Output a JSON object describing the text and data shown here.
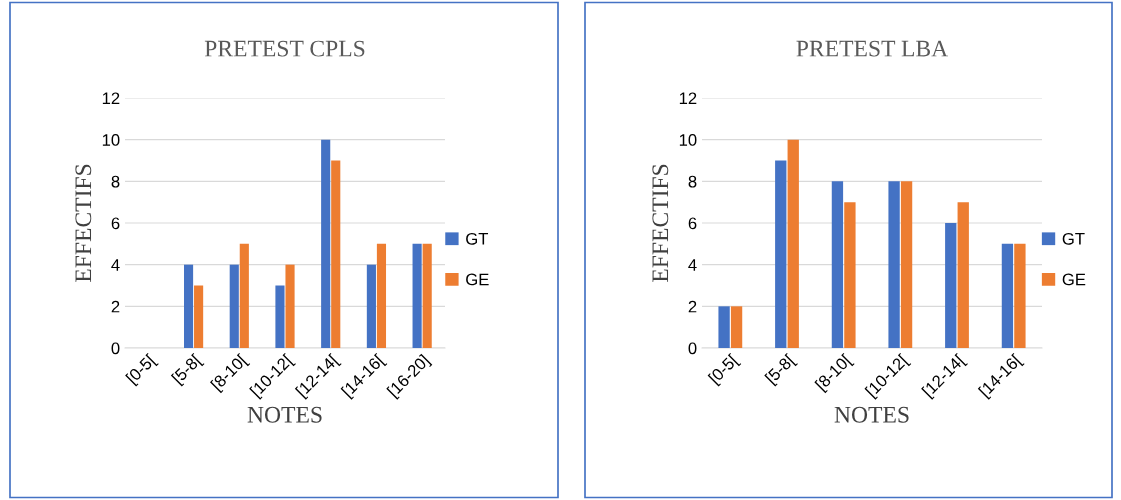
{
  "chart_data": [
    {
      "type": "bar",
      "title": "PRETEST CPLS",
      "xlabel": "NOTES",
      "ylabel": "EFFECTIFS",
      "categories": [
        "[0-5[",
        "[5-8[",
        "[8-10[",
        "[10-12[",
        "[12-14[",
        "[14-16[",
        "[16-20]"
      ],
      "series": [
        {
          "name": "GT",
          "color": "#4472c4",
          "values": [
            0,
            4,
            4,
            3,
            10,
            4,
            5
          ]
        },
        {
          "name": "GE",
          "color": "#ed7d31",
          "values": [
            0,
            3,
            5,
            4,
            9,
            5,
            5
          ]
        }
      ],
      "ylim": [
        0,
        12
      ],
      "yticks": [
        0,
        2,
        4,
        6,
        8,
        10,
        12
      ],
      "grid": "y",
      "legend": "right"
    },
    {
      "type": "bar",
      "title": "PRETEST LBA",
      "xlabel": "NOTES",
      "ylabel": "EFFECTIFS",
      "categories": [
        "[0-5[",
        "[5-8[",
        "[8-10[",
        "[10-12[",
        "[12-14[",
        "[14-16["
      ],
      "series": [
        {
          "name": "GT",
          "color": "#4472c4",
          "values": [
            2,
            9,
            8,
            8,
            6,
            5
          ]
        },
        {
          "name": "GE",
          "color": "#ed7d31",
          "values": [
            2,
            10,
            7,
            8,
            7,
            5
          ]
        }
      ],
      "ylim": [
        0,
        12
      ],
      "yticks": [
        0,
        2,
        4,
        6,
        8,
        10,
        12
      ],
      "grid": "y",
      "legend": "right"
    }
  ]
}
